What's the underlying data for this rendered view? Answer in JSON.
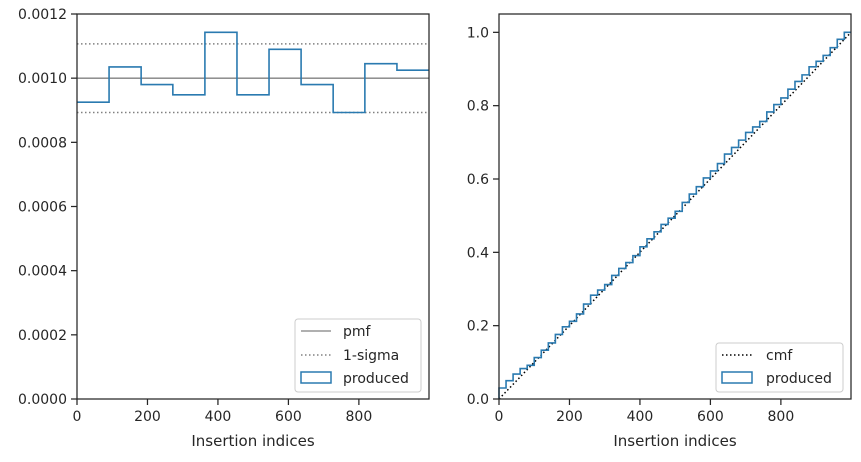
{
  "chart_data": [
    {
      "type": "histogram-step",
      "xlabel": "Insertion indices",
      "ylabel": "",
      "xlim": [
        0,
        999
      ],
      "ylim": [
        0,
        0.0012
      ],
      "x_ticks": [
        0,
        200,
        400,
        600,
        800
      ],
      "y_ticks": [
        0.0,
        0.0002,
        0.0004,
        0.0006,
        0.0008,
        0.001,
        0.0012
      ],
      "x_tick_labels": [
        "0",
        "200",
        "400",
        "600",
        "800"
      ],
      "y_tick_labels": [
        "0.0000",
        "0.0002",
        "0.0004",
        "0.0006",
        "0.0008",
        "0.0010",
        "0.0012"
      ],
      "bin_edges": [
        0,
        91,
        182,
        272,
        363,
        454,
        545,
        636,
        727,
        817,
        908,
        999
      ],
      "values": [
        0.000925,
        0.001035,
        0.00098,
        0.000948,
        0.001143,
        0.000948,
        0.00109,
        0.00098,
        0.000893,
        0.001045,
        0.001025
      ],
      "pmf": 0.001,
      "sigma_band": [
        0.000893,
        0.001107
      ],
      "legend": [
        "pmf",
        "1-sigma",
        "produced"
      ],
      "legend_position": "lower-right",
      "colors": {
        "produced": "#2a7ab0",
        "pmf": "#808080",
        "sigma": "#808080"
      }
    },
    {
      "type": "line",
      "xlabel": "Insertion indices",
      "ylabel": "",
      "xlim": [
        0,
        999
      ],
      "ylim": [
        0,
        1.05
      ],
      "x_ticks": [
        0,
        200,
        400,
        600,
        800
      ],
      "y_ticks": [
        0.0,
        0.2,
        0.4,
        0.6,
        0.8,
        1.0
      ],
      "x_tick_labels": [
        "0",
        "200",
        "400",
        "600",
        "800"
      ],
      "y_tick_labels": [
        "0.0",
        "0.2",
        "0.4",
        "0.6",
        "0.8",
        "1.0"
      ],
      "series": [
        {
          "name": "cmf",
          "style": "dotted",
          "color": "#000000",
          "x": [
            0,
            999
          ],
          "y": [
            0,
            1.0
          ]
        },
        {
          "name": "produced",
          "style": "step",
          "color": "#2a7ab0",
          "x": [
            0,
            20,
            40,
            60,
            80,
            100,
            120,
            140,
            160,
            180,
            200,
            220,
            240,
            260,
            280,
            300,
            320,
            340,
            360,
            380,
            400,
            420,
            440,
            460,
            480,
            500,
            520,
            540,
            560,
            580,
            600,
            620,
            640,
            660,
            680,
            700,
            720,
            740,
            760,
            780,
            800,
            820,
            840,
            860,
            880,
            900,
            920,
            940,
            960,
            980,
            999
          ],
          "y": [
            0.0,
            0.03,
            0.05,
            0.068,
            0.083,
            0.092,
            0.113,
            0.133,
            0.153,
            0.176,
            0.197,
            0.212,
            0.232,
            0.259,
            0.283,
            0.297,
            0.312,
            0.337,
            0.356,
            0.372,
            0.391,
            0.415,
            0.437,
            0.456,
            0.476,
            0.493,
            0.512,
            0.536,
            0.559,
            0.579,
            0.603,
            0.622,
            0.642,
            0.668,
            0.686,
            0.706,
            0.727,
            0.742,
            0.757,
            0.783,
            0.803,
            0.821,
            0.845,
            0.866,
            0.884,
            0.906,
            0.921,
            0.937,
            0.958,
            0.981,
            1.0
          ]
        }
      ],
      "legend": [
        "cmf",
        "produced"
      ],
      "legend_position": "lower-right"
    }
  ]
}
